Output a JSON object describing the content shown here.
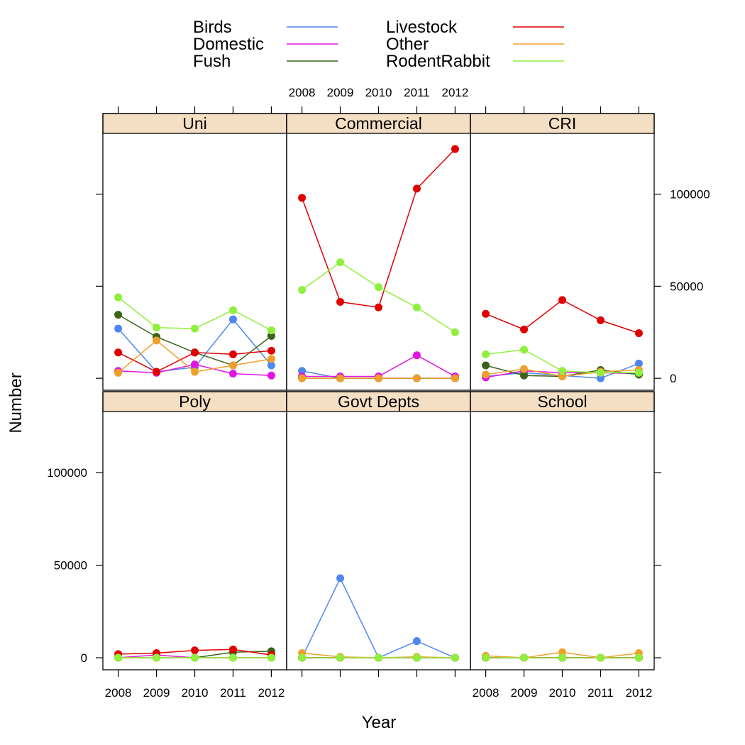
{
  "chart_data": {
    "type": "line",
    "xlabel": "Year",
    "ylabel": "Number",
    "x": [
      2008,
      2009,
      2010,
      2011,
      2012
    ],
    "x_tick_labels": [
      "2008",
      "2009",
      "2010",
      "2011",
      "2012"
    ],
    "xlim": [
      2007.6,
      2012.4
    ],
    "ylim": [
      -6500,
      133000
    ],
    "y_ticks": [
      0,
      50000,
      100000
    ],
    "y_tick_labels": [
      "0",
      "50000",
      "100000"
    ],
    "grid": false,
    "legend_placement": "top",
    "strip_color": "#f5dfc4",
    "legend": [
      {
        "label": "Birds",
        "color": "#4e86f2"
      },
      {
        "label": "Domestic",
        "color": "#e314e3"
      },
      {
        "label": "Fush",
        "color": "#3a6318"
      },
      {
        "label": "Livestock",
        "color": "#e00000"
      },
      {
        "label": "Other",
        "color": "#eea02a"
      },
      {
        "label": "RodentRabbit",
        "color": "#8ef03c"
      }
    ],
    "panels": [
      {
        "name": "Uni",
        "series": [
          {
            "name": "Birds",
            "values": [
              27000,
              3500,
              6000,
              32000,
              7000
            ]
          },
          {
            "name": "Domestic",
            "values": [
              4000,
              3000,
              7500,
              2500,
              1500
            ]
          },
          {
            "name": "Fush",
            "values": [
              34500,
              22500,
              14000,
              7000,
              23000
            ]
          },
          {
            "name": "Livestock",
            "values": [
              14000,
              3500,
              14000,
              13000,
              15000
            ]
          },
          {
            "name": "Other",
            "values": [
              3000,
              20500,
              3500,
              7000,
              10500
            ]
          },
          {
            "name": "RodentRabbit",
            "values": [
              44000,
              27500,
              27000,
              37000,
              26000
            ]
          }
        ]
      },
      {
        "name": "Commercial",
        "series": [
          {
            "name": "Birds",
            "values": [
              4000,
              0,
              0,
              0,
              0
            ]
          },
          {
            "name": "Domestic",
            "values": [
              1000,
              1000,
              1000,
              12500,
              1000
            ]
          },
          {
            "name": "Fush",
            "values": [
              0,
              0,
              0,
              0,
              0
            ]
          },
          {
            "name": "Livestock",
            "values": [
              98000,
              41500,
              38500,
              103000,
              124500
            ]
          },
          {
            "name": "Other",
            "values": [
              0,
              0,
              0,
              0,
              0
            ]
          },
          {
            "name": "RodentRabbit",
            "values": [
              48000,
              63000,
              49500,
              38500,
              25000
            ]
          }
        ]
      },
      {
        "name": "CRI",
        "series": [
          {
            "name": "Birds",
            "values": [
              1000,
              3000,
              1500,
              0,
              8000
            ]
          },
          {
            "name": "Domestic",
            "values": [
              500,
              4000,
              3000,
              3000,
              2500
            ]
          },
          {
            "name": "Fush",
            "values": [
              7000,
              1500,
              1000,
              4500,
              2000
            ]
          },
          {
            "name": "Livestock",
            "values": [
              35000,
              26500,
              42500,
              31500,
              24500
            ]
          },
          {
            "name": "Other",
            "values": [
              2000,
              5000,
              1000,
              3500,
              4500
            ]
          },
          {
            "name": "RodentRabbit",
            "values": [
              13000,
              15500,
              4000,
              3000,
              3000
            ]
          }
        ]
      },
      {
        "name": "Poly",
        "series": [
          {
            "name": "Birds",
            "values": [
              0,
              0,
              0,
              0,
              0
            ]
          },
          {
            "name": "Domestic",
            "values": [
              0,
              1500,
              0,
              0,
              0
            ]
          },
          {
            "name": "Fush",
            "values": [
              0,
              0,
              0,
              3000,
              3500
            ]
          },
          {
            "name": "Livestock",
            "values": [
              2000,
              2500,
              4000,
              4500,
              1500
            ]
          },
          {
            "name": "Other",
            "values": [
              0,
              0,
              0,
              0,
              0
            ]
          },
          {
            "name": "RodentRabbit",
            "values": [
              0,
              0,
              0,
              0,
              0
            ]
          }
        ]
      },
      {
        "name": "Govt Depts",
        "series": [
          {
            "name": "Birds",
            "values": [
              0,
              43000,
              0,
              9000,
              0
            ]
          },
          {
            "name": "Domestic",
            "values": [
              0,
              0,
              0,
              0,
              0
            ]
          },
          {
            "name": "Fush",
            "values": [
              0,
              0,
              0,
              0,
              0
            ]
          },
          {
            "name": "Livestock",
            "values": [
              0,
              0,
              0,
              0,
              0
            ]
          },
          {
            "name": "Other",
            "values": [
              2500,
              500,
              0,
              500,
              0
            ]
          },
          {
            "name": "RodentRabbit",
            "values": [
              0,
              0,
              0,
              0,
              0
            ]
          }
        ]
      },
      {
        "name": "School",
        "series": [
          {
            "name": "Birds",
            "values": [
              0,
              0,
              0,
              0,
              0
            ]
          },
          {
            "name": "Domestic",
            "values": [
              0,
              0,
              0,
              0,
              0
            ]
          },
          {
            "name": "Fush",
            "values": [
              0,
              0,
              0,
              0,
              0
            ]
          },
          {
            "name": "Livestock",
            "values": [
              0,
              0,
              0,
              0,
              0
            ]
          },
          {
            "name": "Other",
            "values": [
              1000,
              0,
              3000,
              0,
              2500
            ]
          },
          {
            "name": "RodentRabbit",
            "values": [
              0,
              0,
              0,
              0,
              0
            ]
          }
        ]
      }
    ]
  }
}
